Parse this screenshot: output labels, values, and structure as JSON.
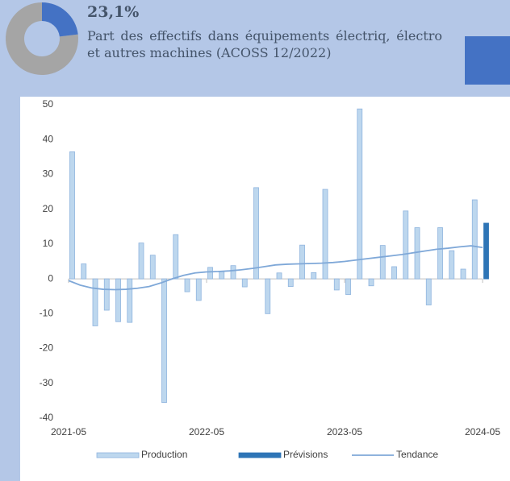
{
  "header": {
    "value": 23.1,
    "value_label": "23,1%",
    "text": "Part des effectifs dans équipements électriq, électro et autres machines (ACOSS 12/2022)",
    "colors": [
      "#4472c4",
      "#a5a5a5"
    ]
  },
  "chart_data": {
    "type": "bar",
    "categories": [
      "2021-05",
      null,
      null,
      null,
      null,
      null,
      null,
      null,
      null,
      null,
      null,
      null,
      "2022-05",
      null,
      null,
      null,
      null,
      null,
      null,
      null,
      null,
      null,
      null,
      null,
      "2023-05",
      null,
      null,
      null,
      null,
      null,
      null,
      null,
      null,
      null,
      null,
      null,
      "2024-05"
    ],
    "series": [
      {
        "name": "Production",
        "color": "#bdd7ee",
        "values": [
          36.5,
          4.3,
          -13.5,
          -9,
          -12.3,
          -12.5,
          10.3,
          6.8,
          -35.5,
          12.7,
          -3.7,
          -6.2,
          3.3,
          2.2,
          3.8,
          -2.3,
          26.2,
          -10,
          1.7,
          -2.2,
          9.7,
          1.8,
          25.7,
          -3.2,
          -4.5,
          48.8,
          -2,
          9.6,
          3.5,
          19.5,
          14.7,
          -7.5,
          14.7,
          8.1,
          2.8,
          22.7,
          null
        ]
      },
      {
        "name": "Prévisions",
        "color": "#2e75b6",
        "values": [
          null,
          null,
          null,
          null,
          null,
          null,
          null,
          null,
          null,
          null,
          null,
          null,
          null,
          null,
          null,
          null,
          null,
          null,
          null,
          null,
          null,
          null,
          null,
          null,
          null,
          null,
          null,
          null,
          null,
          null,
          null,
          null,
          null,
          null,
          null,
          null,
          16
        ]
      },
      {
        "name": "Tendance",
        "type": "line",
        "color": "#7fa8d8",
        "values": [
          -0.5,
          -1.8,
          -2.6,
          -3,
          -3.1,
          -3,
          -2.7,
          -2.2,
          -1.2,
          0,
          1,
          1.7,
          2,
          2.1,
          2.3,
          2.6,
          3,
          3.5,
          4,
          4.2,
          4.3,
          4.4,
          4.5,
          4.7,
          5,
          5.4,
          5.8,
          6.2,
          6.6,
          7,
          7.5,
          8,
          8.5,
          8.8,
          9.2,
          9.5,
          9
        ]
      }
    ],
    "ylim": [
      -40,
      50
    ],
    "yticks": [
      -40,
      -30,
      -20,
      -10,
      0,
      10,
      20,
      30,
      40,
      50
    ],
    "grid": false,
    "legend": "bottom"
  }
}
